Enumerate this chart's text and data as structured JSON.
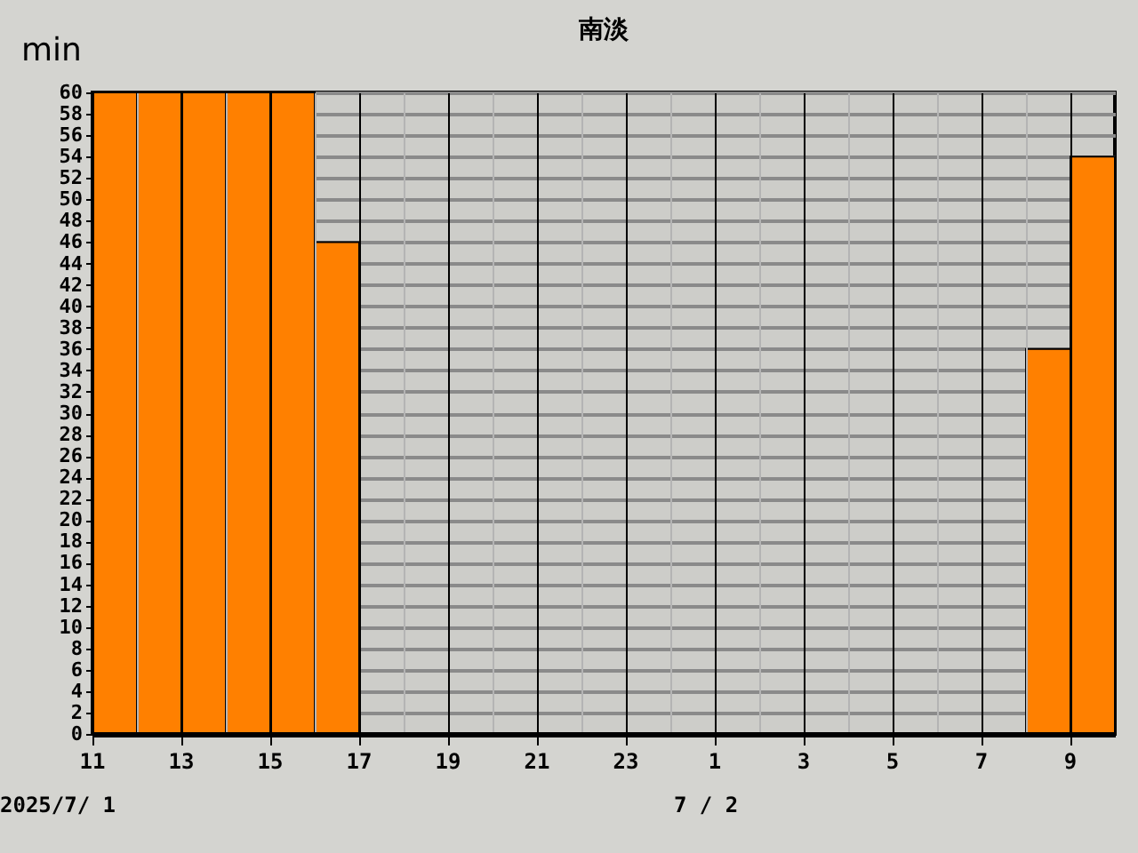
{
  "chart_data": {
    "type": "bar",
    "title": "南淡",
    "ylabel": "min",
    "categories": [
      "11",
      null,
      "13",
      null,
      "15",
      null,
      "17",
      null,
      "19",
      null,
      "21",
      null,
      "23",
      null,
      "1",
      null,
      "3",
      null,
      "5",
      null,
      "7",
      null,
      "9"
    ],
    "series": [
      {
        "color": "#ff8000",
        "values": [
          60,
          60,
          60,
          60,
          60,
          46,
          0,
          0,
          0,
          0,
          0,
          0,
          0,
          0,
          0,
          0,
          0,
          0,
          0,
          0,
          0,
          36,
          54
        ]
      }
    ],
    "ylim": [
      0,
      60
    ],
    "yticks": [
      0,
      2,
      4,
      6,
      8,
      10,
      12,
      14,
      16,
      18,
      20,
      22,
      24,
      26,
      28,
      30,
      32,
      34,
      36,
      38,
      40,
      42,
      44,
      46,
      48,
      50,
      52,
      54,
      56,
      58,
      60
    ],
    "grid": true,
    "annotations": [
      "2025/7/ 1",
      "7 / 2"
    ]
  }
}
